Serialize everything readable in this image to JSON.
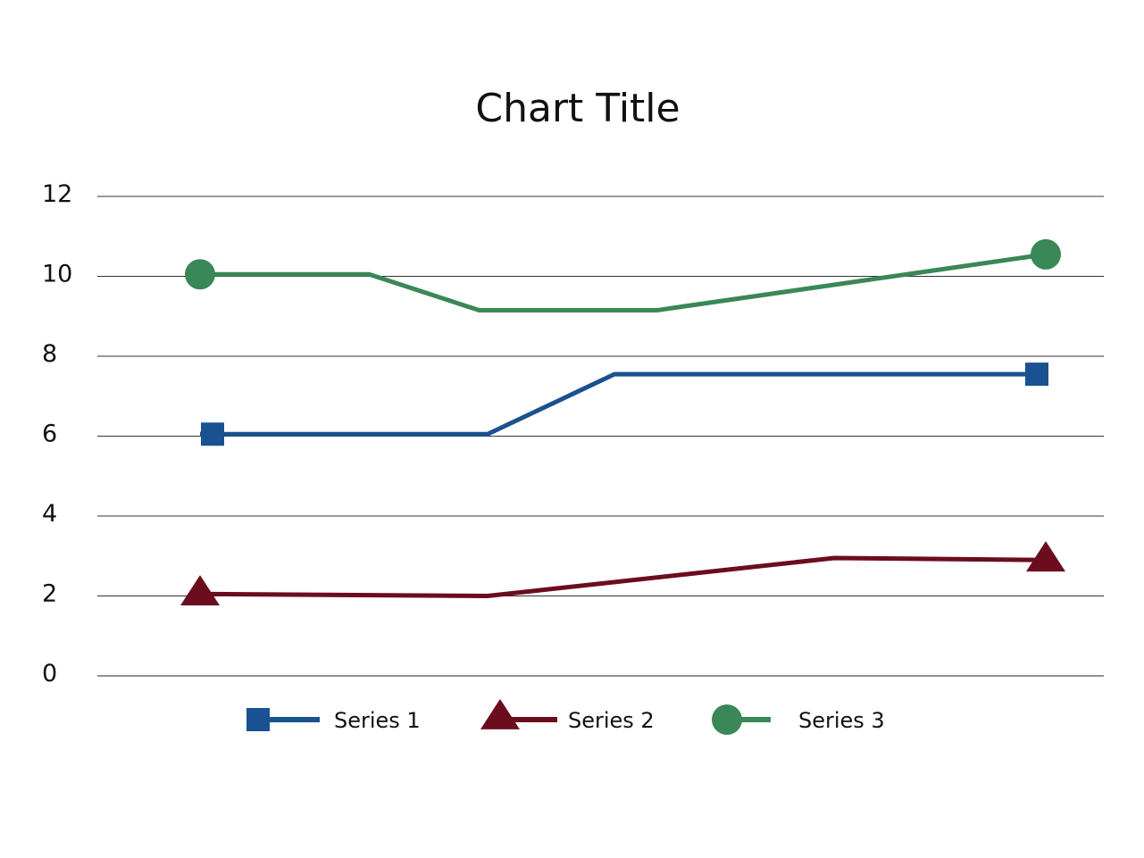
{
  "chart_data": {
    "type": "line",
    "title": "Chart Title",
    "xlabel": "",
    "ylabel": "",
    "ylim": [
      0,
      12
    ],
    "yticks": [
      "0",
      "2",
      "4",
      "6",
      "8",
      "10",
      "12"
    ],
    "grid": true,
    "legend_position": "bottom",
    "series": [
      {
        "name": "Series 1",
        "color": "#1a5190",
        "marker": "square",
        "points": [
          [
            0,
            6.05
          ],
          [
            0.34,
            6.05
          ],
          [
            0.49,
            7.55
          ],
          [
            1,
            7.55
          ]
        ]
      },
      {
        "name": "Series 2",
        "color": "#6b0d1e",
        "marker": "triangle",
        "points": [
          [
            0,
            2.05
          ],
          [
            0.34,
            2.0
          ],
          [
            0.75,
            2.95
          ],
          [
            1,
            2.9
          ]
        ]
      },
      {
        "name": "Series 3",
        "color": "#3a8758",
        "marker": "circle",
        "points": [
          [
            0,
            10.05
          ],
          [
            0.2,
            10.05
          ],
          [
            0.33,
            9.15
          ],
          [
            0.54,
            9.15
          ],
          [
            1,
            10.55
          ]
        ]
      }
    ]
  }
}
